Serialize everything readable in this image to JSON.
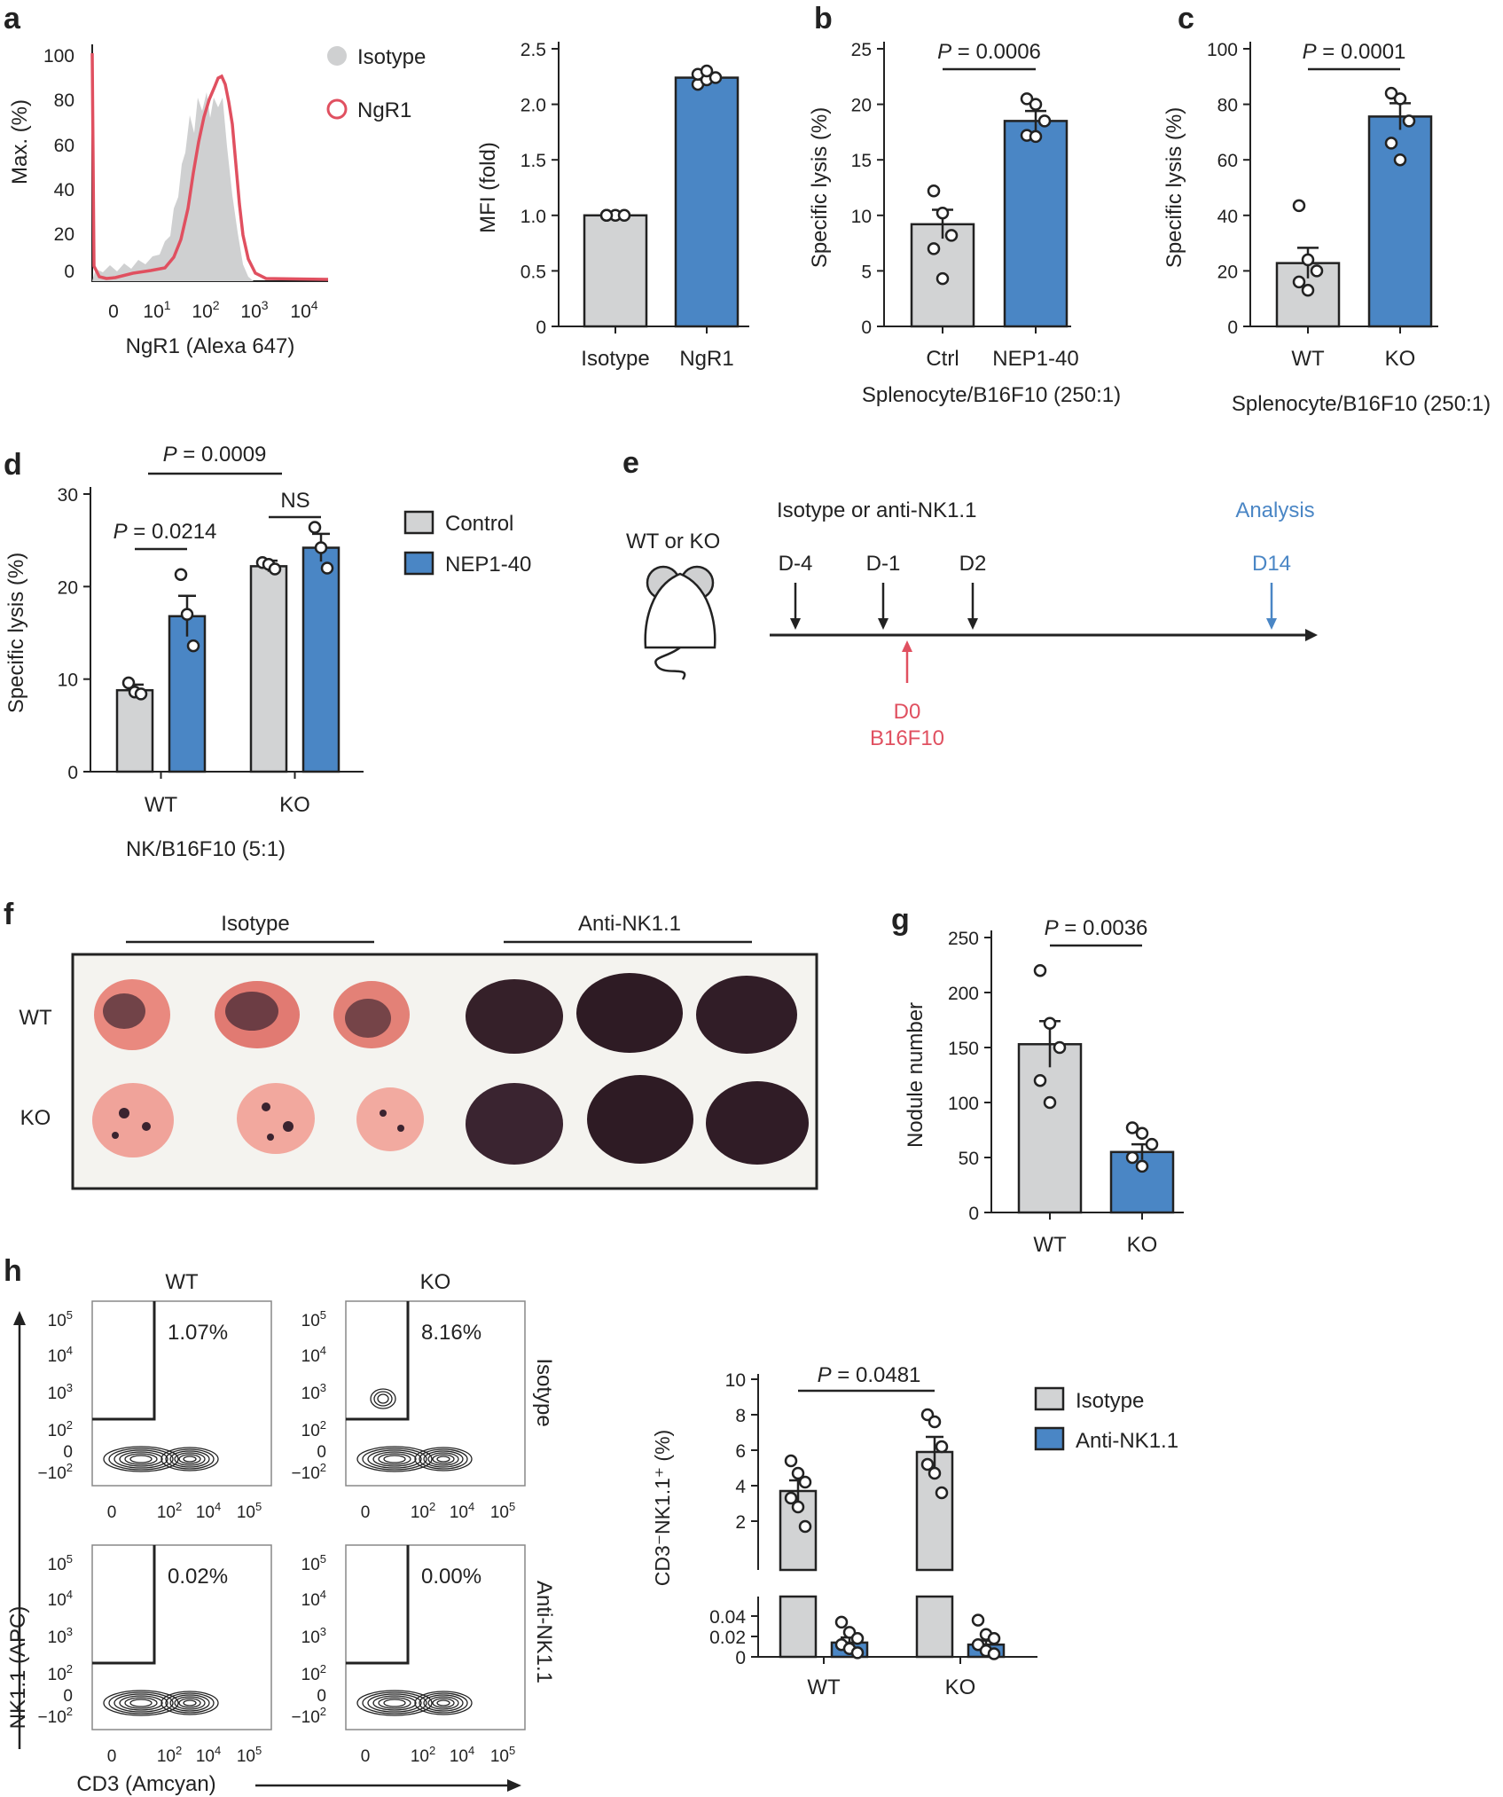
{
  "colors": {
    "grey": "#d2d3d4",
    "blue": "#4a86c5",
    "red": "#e05060",
    "axis": "#222222"
  },
  "labels": {
    "a": "a",
    "b": "b",
    "c": "c",
    "d": "d",
    "e": "e",
    "f": "f",
    "g": "g",
    "h": "h"
  },
  "panel_e": {
    "mouse_label": "WT or KO",
    "treatment": "Isotype or anti-NK1.1",
    "days": [
      "D-4",
      "D-1",
      "D2"
    ],
    "analysis": "Analysis",
    "analysis_day": "D14",
    "inject_day": "D0",
    "inject_cells": "B16F10"
  },
  "panel_f": {
    "group_isotype": "Isotype",
    "group_anti": "Anti-NK1.1",
    "row_wt": "WT",
    "row_ko": "KO"
  },
  "panel_h_flow": {
    "col_wt": "WT",
    "col_ko": "KO",
    "row_isotype": "Isotype",
    "row_anti": "Anti-NK1.1",
    "ylabel": "NK1.1 (APC)",
    "xlabel": "CD3 (Amcyan)",
    "percentages": {
      "wt_isotype": "1.07%",
      "ko_isotype": "8.16%",
      "wt_anti": "0.02%",
      "ko_anti": "0.00%"
    },
    "yticks": [
      "10",
      "10",
      "10",
      "10",
      "0",
      "−10"
    ],
    "xticks": [
      "0",
      "10",
      "10",
      "10"
    ]
  },
  "chart_data": [
    {
      "id": "a-histogram",
      "type": "area",
      "xlabel": "NgR1 (Alexa 647)",
      "ylabel": "Max. (%)",
      "yticks": [
        "0",
        "20",
        "40",
        "60",
        "80",
        "100"
      ],
      "xticks": [
        "0",
        "10",
        "10",
        "10",
        "10"
      ],
      "series": [
        {
          "name": "Isotype"
        },
        {
          "name": "NgR1"
        }
      ],
      "legend": "top-right"
    },
    {
      "id": "a-bar",
      "type": "bar",
      "categories": [
        "Isotype",
        "NgR1"
      ],
      "values": [
        1.0,
        2.24
      ],
      "errors": [
        0,
        0.04
      ],
      "points": [
        [
          1,
          1,
          1,
          1
        ],
        [
          2.18,
          2.22,
          2.24,
          2.27,
          2.3
        ]
      ],
      "ylabel": "MFI (fold)",
      "ylim": [
        0,
        2.5
      ],
      "yticks": [
        "0",
        "0.5",
        "1.0",
        "1.5",
        "2.0",
        "2.5"
      ]
    },
    {
      "id": "b",
      "type": "bar",
      "categories": [
        "Ctrl",
        "NEP1-40"
      ],
      "values": [
        9.2,
        18.5
      ],
      "errors": [
        1.3,
        0.9
      ],
      "points": [
        [
          12.2,
          10.2,
          8.2,
          7.0,
          4.3
        ],
        [
          20.5,
          20.0,
          18.5,
          17.2,
          17.1
        ]
      ],
      "ylabel": "Specific lysis (%)",
      "xlabel": "Splenocyte/B16F10 (250:1)",
      "ylim": [
        0,
        25
      ],
      "yticks": [
        "0",
        "5",
        "10",
        "15",
        "20",
        "25"
      ],
      "pvalue": "P = 0.0006"
    },
    {
      "id": "c",
      "type": "bar",
      "categories": [
        "WT",
        "KO"
      ],
      "values": [
        22.8,
        75.6
      ],
      "errors": [
        5.5,
        4.8
      ],
      "points": [
        [
          43.5,
          24.0,
          20.0,
          16.0,
          13.0
        ],
        [
          84.0,
          82.0,
          74.0,
          66.0,
          60.0
        ]
      ],
      "ylabel": "Specific lysis (%)",
      "xlabel": "Splenocyte/B16F10 (250:1)",
      "ylim": [
        0,
        100
      ],
      "yticks": [
        "0",
        "20",
        "40",
        "60",
        "80",
        "100"
      ],
      "pvalue": "P = 0.0001"
    },
    {
      "id": "d",
      "type": "bar",
      "categories": [
        "WT",
        "KO"
      ],
      "series": [
        {
          "name": "Control",
          "values": [
            8.8,
            22.2
          ],
          "errors": [
            0.6,
            0.6
          ],
          "points": [
            [
              9.6,
              8.6,
              8.4
            ],
            [
              22.6,
              22.4,
              21.9
            ]
          ]
        },
        {
          "name": "NEP1-40",
          "values": [
            16.8,
            24.2
          ],
          "errors": [
            2.2,
            1.5
          ],
          "points": [
            [
              21.3,
              17.0,
              13.6
            ],
            [
              26.4,
              24.2,
              22.0
            ]
          ]
        }
      ],
      "ylabel": "Specific lysis (%)",
      "xlabel": "NK/B16F10 (5:1)",
      "ylim": [
        0,
        30
      ],
      "yticks": [
        "0",
        "10",
        "20",
        "30"
      ],
      "pvalues": [
        "P = 0.0009",
        "P = 0.0214",
        "NS"
      ],
      "legend": "right"
    },
    {
      "id": "g",
      "type": "bar",
      "categories": [
        "WT",
        "KO"
      ],
      "values": [
        153,
        55
      ],
      "errors": [
        21,
        7
      ],
      "points": [
        [
          220,
          172,
          150,
          120,
          100
        ],
        [
          77,
          72,
          62,
          50,
          42
        ]
      ],
      "ylabel": "Nodule number",
      "ylim": [
        0,
        250
      ],
      "yticks": [
        "0",
        "50",
        "100",
        "150",
        "200",
        "250"
      ],
      "pvalue": "P = 0.0036"
    },
    {
      "id": "h-bar",
      "type": "bar",
      "categories": [
        "WT",
        "KO"
      ],
      "series": [
        {
          "name": "Isotype",
          "values": [
            3.7,
            5.9
          ],
          "errors": [
            0.6,
            0.85
          ],
          "points": [
            [
              5.4,
              4.7,
              4.2,
              3.3,
              2.8,
              1.7
            ],
            [
              8.0,
              7.6,
              6.2,
              5.2,
              4.7,
              3.6
            ]
          ]
        },
        {
          "name": "Anti-NK1.1",
          "values": [
            0.014,
            0.012
          ],
          "errors": [
            0.005,
            0.004
          ],
          "points": [
            [
              0.034,
              0.024,
              0.018,
              0.012,
              0.008,
              0.004
            ],
            [
              0.036,
              0.022,
              0.018,
              0.012,
              0.006,
              0.003
            ]
          ]
        }
      ],
      "ylabel": "CD3⁻NK1.1⁺ (%)",
      "yticks_upper": [
        "2",
        "4",
        "6",
        "8",
        "10"
      ],
      "yticks_lower": [
        "0",
        "0.02",
        "0.04"
      ],
      "ylim_upper": [
        1,
        10
      ],
      "ylim_lower": [
        0,
        0.04
      ],
      "pvalue": "P = 0.0481",
      "legend": "right"
    }
  ]
}
